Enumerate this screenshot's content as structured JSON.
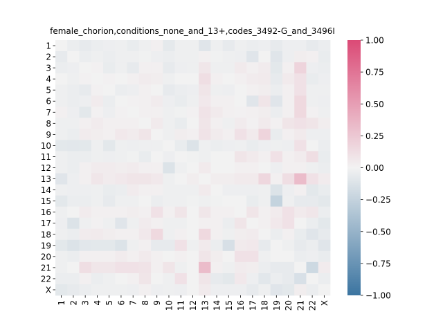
{
  "chart_data": {
    "type": "heatmap",
    "title": "female_chorion,conditions_none_and_13+,codes_3492-G_and_3496I",
    "xlabel": "",
    "ylabel": "",
    "labels": [
      "1",
      "2",
      "3",
      "4",
      "5",
      "6",
      "7",
      "8",
      "9",
      "10",
      "11",
      "12",
      "13",
      "14",
      "15",
      "16",
      "17",
      "18",
      "19",
      "20",
      "21",
      "22",
      "X"
    ],
    "colorbar": {
      "vmin": -1.0,
      "vmax": 1.0,
      "ticks": [
        1.0,
        0.75,
        0.5,
        0.25,
        0.0,
        -0.25,
        -0.5,
        -0.75,
        -1.0
      ],
      "tick_labels": [
        "1.00",
        "0.75",
        "0.50",
        "0.25",
        "0.00",
        "−0.25",
        "−0.50",
        "−0.75",
        "−1.00"
      ]
    },
    "colormap": {
      "low": "#3b74a0",
      "mid": "#f2f2f2",
      "high": "#db4a76"
    },
    "values": [
      [
        0.0,
        -0.04,
        -0.06,
        -0.04,
        -0.03,
        -0.02,
        -0.05,
        -0.02,
        0.02,
        -0.07,
        -0.02,
        -0.02,
        -0.1,
        -0.02,
        -0.06,
        -0.02,
        -0.04,
        -0.03,
        -0.06,
        -0.03,
        -0.03,
        -0.06,
        -0.04
      ],
      [
        -0.06,
        0.0,
        -0.04,
        -0.02,
        -0.04,
        -0.02,
        -0.02,
        -0.01,
        -0.03,
        -0.04,
        -0.02,
        -0.02,
        0.02,
        -0.01,
        -0.02,
        -0.03,
        -0.1,
        0.0,
        -0.1,
        -0.03,
        0.03,
        0.02,
        -0.05
      ],
      [
        -0.04,
        -0.03,
        0.0,
        0.01,
        -0.05,
        -0.02,
        -0.06,
        0.02,
        0.02,
        -0.06,
        -0.03,
        -0.02,
        0.07,
        -0.02,
        -0.02,
        0.05,
        0.02,
        0.04,
        -0.08,
        0.02,
        0.18,
        -0.03,
        -0.04
      ],
      [
        0.0,
        -0.02,
        0.01,
        0.0,
        0.01,
        0.0,
        0.02,
        0.04,
        0.03,
        -0.02,
        0.0,
        0.0,
        0.12,
        0.02,
        0.0,
        0.02,
        0.04,
        0.05,
        -0.06,
        0.05,
        0.1,
        -0.05,
        -0.03
      ],
      [
        -0.02,
        -0.04,
        -0.06,
        0.01,
        0.0,
        -0.04,
        -0.03,
        0.02,
        0.0,
        -0.06,
        -0.04,
        -0.03,
        0.08,
        -0.02,
        -0.03,
        0.0,
        0.02,
        0.03,
        -0.04,
        0.02,
        0.1,
        -0.02,
        -0.02
      ],
      [
        -0.02,
        -0.04,
        -0.03,
        0.04,
        -0.04,
        0.0,
        0.01,
        0.02,
        0.04,
        -0.03,
        -0.05,
        -0.02,
        0.06,
        0.02,
        0.02,
        0.0,
        -0.1,
        0.08,
        -0.1,
        0.02,
        0.15,
        -0.02,
        -0.03
      ],
      [
        0.02,
        -0.03,
        -0.08,
        0.01,
        -0.03,
        0.01,
        0.0,
        0.02,
        0.02,
        -0.02,
        -0.01,
        0.01,
        0.09,
        0.05,
        0.02,
        0.01,
        0.02,
        0.03,
        -0.04,
        0.02,
        0.15,
        0.01,
        -0.02
      ],
      [
        -0.02,
        -0.02,
        0.02,
        0.04,
        0.02,
        0.02,
        0.02,
        0.0,
        0.05,
        -0.02,
        -0.05,
        0.0,
        0.08,
        0.02,
        -0.02,
        0.04,
        0.01,
        0.05,
        0.01,
        0.08,
        0.1,
        0.08,
        0.03
      ],
      [
        -0.02,
        -0.04,
        0.04,
        0.03,
        0.02,
        0.06,
        0.04,
        0.08,
        0.0,
        -0.02,
        0.03,
        0.02,
        0.09,
        0.04,
        0.02,
        0.1,
        0.05,
        0.18,
        -0.05,
        0.02,
        0.05,
        -0.03,
        -0.03
      ],
      [
        -0.08,
        -0.09,
        -0.08,
        -0.02,
        -0.08,
        -0.02,
        -0.03,
        -0.02,
        -0.02,
        0.0,
        -0.05,
        -0.12,
        -0.02,
        -0.04,
        -0.03,
        -0.02,
        -0.05,
        -0.03,
        -0.02,
        -0.03,
        0.1,
        0.0,
        -0.04
      ],
      [
        -0.02,
        -0.04,
        -0.04,
        -0.02,
        -0.03,
        -0.02,
        -0.01,
        -0.05,
        0.0,
        -0.03,
        0.0,
        -0.01,
        -0.02,
        0.0,
        0.0,
        0.08,
        0.05,
        0.02,
        0.1,
        0.02,
        0.04,
        0.12,
        -0.05
      ],
      [
        -0.02,
        -0.04,
        0.02,
        0.04,
        0.04,
        0.03,
        0.04,
        0.02,
        0.02,
        -0.12,
        -0.02,
        0.0,
        0.05,
        0.0,
        0.0,
        0.02,
        0.02,
        0.0,
        -0.03,
        0.02,
        0.02,
        -0.02,
        -0.04
      ],
      [
        -0.1,
        -0.03,
        0.02,
        0.07,
        0.04,
        0.06,
        0.08,
        0.08,
        0.06,
        -0.02,
        0.0,
        0.03,
        0.0,
        0.03,
        0.03,
        0.05,
        0.05,
        0.16,
        0.02,
        0.12,
        0.32,
        0.1,
        0.04
      ],
      [
        -0.02,
        -0.03,
        -0.03,
        -0.02,
        -0.05,
        -0.04,
        0.04,
        0.02,
        0.02,
        -0.02,
        -0.02,
        -0.02,
        0.05,
        0.0,
        -0.03,
        -0.03,
        -0.03,
        -0.02,
        -0.12,
        -0.03,
        0.02,
        -0.08,
        -0.05
      ],
      [
        -0.08,
        -0.04,
        -0.04,
        -0.02,
        -0.06,
        -0.02,
        -0.02,
        0.0,
        -0.04,
        -0.02,
        -0.02,
        -0.01,
        -0.02,
        -0.01,
        0.0,
        0.0,
        -0.05,
        -0.02,
        -0.25,
        -0.02,
        -0.06,
        -0.06,
        -0.08
      ],
      [
        -0.02,
        0.0,
        0.04,
        0.02,
        0.02,
        0.02,
        0.03,
        0.02,
        0.1,
        0.02,
        0.08,
        0.0,
        0.07,
        0.02,
        0.02,
        0.0,
        0.08,
        0.02,
        0.04,
        0.1,
        0.05,
        0.07,
        -0.04
      ],
      [
        -0.03,
        -0.12,
        -0.02,
        0.01,
        -0.02,
        -0.1,
        -0.02,
        0.04,
        0.02,
        -0.02,
        -0.02,
        0.0,
        0.02,
        0.02,
        -0.04,
        0.08,
        0.0,
        0.02,
        0.06,
        0.1,
        0.0,
        -0.04,
        -0.08
      ],
      [
        -0.02,
        -0.04,
        0.04,
        0.05,
        0.03,
        0.02,
        0.02,
        0.06,
        0.15,
        -0.02,
        0.02,
        0.0,
        0.15,
        0.02,
        -0.02,
        0.03,
        0.04,
        0.0,
        -0.04,
        0.02,
        -0.05,
        -0.1,
        -0.06
      ],
      [
        -0.08,
        -0.12,
        -0.09,
        -0.08,
        -0.08,
        -0.12,
        -0.02,
        0.02,
        -0.06,
        -0.06,
        0.1,
        -0.02,
        0.05,
        -0.04,
        -0.15,
        0.05,
        0.06,
        -0.06,
        0.0,
        -0.02,
        -0.06,
        -0.04,
        -0.1
      ],
      [
        -0.02,
        -0.04,
        0.02,
        0.02,
        0.02,
        0.04,
        0.02,
        0.05,
        0.02,
        0.0,
        0.02,
        0.0,
        0.08,
        0.03,
        0.0,
        0.1,
        0.1,
        -0.02,
        0.0,
        0.0,
        -0.04,
        -0.03,
        -0.05
      ],
      [
        -0.02,
        0.0,
        0.12,
        0.07,
        0.07,
        0.1,
        0.1,
        0.09,
        0.02,
        0.08,
        -0.02,
        0.0,
        0.32,
        0.02,
        -0.02,
        0.04,
        0.03,
        -0.04,
        -0.06,
        -0.06,
        0.0,
        -0.2,
        0.04
      ],
      [
        -0.04,
        -0.04,
        0.02,
        -0.04,
        -0.02,
        0.0,
        0.02,
        0.08,
        0.0,
        -0.02,
        0.1,
        0.0,
        0.08,
        -0.06,
        -0.08,
        0.06,
        -0.03,
        -0.09,
        -0.04,
        -0.06,
        -0.14,
        0.0,
        -0.04
      ],
      [
        -0.08,
        -0.06,
        -0.04,
        -0.02,
        -0.02,
        -0.02,
        -0.03,
        0.02,
        -0.03,
        -0.02,
        -0.03,
        0.0,
        0.05,
        -0.03,
        -0.03,
        -0.03,
        -0.06,
        -0.02,
        -0.1,
        -0.08,
        0.03,
        -0.04,
        0.0
      ]
    ]
  }
}
